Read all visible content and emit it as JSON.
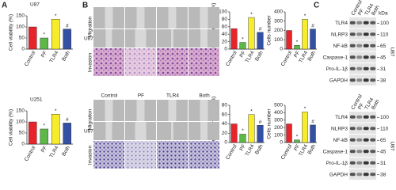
{
  "chart_data": [
    {
      "type": "bar",
      "title": "U87",
      "ylabel": "Cell viability (%)",
      "categories": [
        "Control",
        "PF",
        "TLR4",
        "Both"
      ],
      "values": [
        100,
        50,
        135,
        90
      ],
      "colors": [
        "#e8242b",
        "#5cb847",
        "#f7ec2a",
        "#3450a4"
      ],
      "annotations": [
        null,
        "*",
        "*",
        "#"
      ],
      "ylim": [
        0,
        150
      ],
      "yticks": [
        0,
        50,
        100,
        150
      ]
    },
    {
      "type": "bar",
      "title": "U251",
      "ylabel": "Cell viability (%)",
      "categories": [
        "Control",
        "PF",
        "TLR4",
        "Both"
      ],
      "values": [
        100,
        68,
        135,
        95
      ],
      "colors": [
        "#e8242b",
        "#5cb847",
        "#f7ec2a",
        "#3450a4"
      ],
      "annotations": [
        null,
        "*",
        "*",
        "#"
      ],
      "ylim": [
        0,
        150
      ],
      "yticks": [
        0,
        50,
        100,
        150
      ]
    },
    {
      "type": "bar",
      "ylabel": "Wound healing area (%)",
      "categories": [
        "Control",
        "PF",
        "TLR4",
        "Both"
      ],
      "values": [
        55,
        18,
        85,
        45
      ],
      "colors": [
        "#e8242b",
        "#5cb847",
        "#f7ec2a",
        "#3450a4"
      ],
      "annotations": [
        null,
        "*",
        "*",
        "#"
      ],
      "ylim": [
        0,
        100
      ],
      "yticks": [
        0,
        20,
        40,
        60,
        80,
        100
      ]
    },
    {
      "type": "bar",
      "ylabel": "Cells number",
      "categories": [
        "Control",
        "PF",
        "TLR4",
        "Both"
      ],
      "values": [
        200,
        40,
        320,
        215
      ],
      "colors": [
        "#e8242b",
        "#5cb847",
        "#f7ec2a",
        "#3450a4"
      ],
      "annotations": [
        null,
        "*",
        "*",
        "#"
      ],
      "ylim": [
        0,
        400
      ],
      "yticks": [
        0,
        100,
        200,
        300,
        400
      ]
    },
    {
      "type": "bar",
      "ylabel": "Wound healing area (%)",
      "categories": [
        "Control",
        "PF",
        "TLR4",
        "Both"
      ],
      "values": [
        40,
        18,
        60,
        37
      ],
      "colors": [
        "#e8242b",
        "#5cb847",
        "#f7ec2a",
        "#3450a4"
      ],
      "annotations": [
        null,
        "*",
        "*",
        "#"
      ],
      "ylim": [
        0,
        80
      ],
      "yticks": [
        0,
        20,
        40,
        60,
        80
      ]
    },
    {
      "type": "bar",
      "ylabel": "Cells number",
      "categories": [
        "Control",
        "PF",
        "TLR4",
        "Both"
      ],
      "values": [
        250,
        35,
        410,
        235
      ],
      "colors": [
        "#e8242b",
        "#5cb847",
        "#f7ec2a",
        "#3450a4"
      ],
      "annotations": [
        null,
        "*",
        "*",
        "#"
      ],
      "ylim": [
        0,
        500
      ],
      "yticks": [
        0,
        100,
        200,
        300,
        400,
        500
      ]
    }
  ],
  "panel_labels": [
    "A",
    "B",
    "C"
  ],
  "micrographs": [
    {
      "cell_line": "U87",
      "rows": [
        "Migration",
        "Invasion"
      ]
    },
    {
      "cell_line": "U87",
      "columns": [
        "Control",
        "PF",
        "TLR4",
        "Both"
      ],
      "rows": [
        "Migration",
        "Invasion"
      ]
    }
  ],
  "blots": [
    {
      "lanes": [
        "Control",
        "PF",
        "TLR4",
        "Both"
      ],
      "unit": "kDa",
      "cell_line": "U87",
      "proteins": [
        "TLR4",
        "NLRP3",
        "NF-kB",
        "Caspase-1",
        "Pro-IL-1β",
        "GAPDH"
      ],
      "markers": [
        "100",
        "110",
        "65",
        "45",
        "31",
        "38"
      ]
    },
    {
      "lanes": [
        "Control",
        "PF",
        "TLR4",
        "Both"
      ],
      "cell_line": "U87",
      "proteins": [
        "TLR4",
        "NLRP3",
        "NF-kB",
        "Caspase-1",
        "Pro-IL-1β",
        "GAPDH"
      ],
      "markers": [
        "100",
        "110",
        "65",
        "45",
        "31",
        "38"
      ]
    }
  ]
}
